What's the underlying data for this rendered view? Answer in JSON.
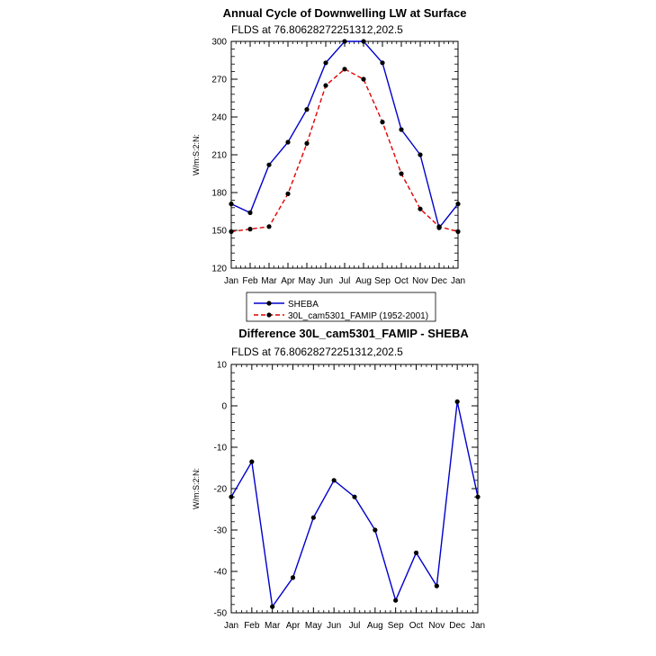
{
  "chart_data": [
    {
      "type": "line",
      "title": "Annual Cycle of Downwelling LW at Surface",
      "subtitle": "FLDS at 76.80628272251312,202.5",
      "ylabel": "W/m:S:2:N:",
      "xlabel": "",
      "categories": [
        "Jan",
        "Feb",
        "Mar",
        "Apr",
        "May",
        "Jun",
        "Jul",
        "Aug",
        "Sep",
        "Oct",
        "Nov",
        "Dec",
        "Jan"
      ],
      "ylim": [
        120,
        300
      ],
      "yticks": [
        120,
        150,
        180,
        210,
        240,
        270,
        300
      ],
      "series": [
        {
          "name": "SHEBA",
          "color": "#0000cc",
          "dash": "solid",
          "values": [
            171,
            164,
            202,
            220,
            246,
            283,
            300,
            300,
            283,
            230,
            210,
            152,
            171
          ]
        },
        {
          "name": "30L_cam5301_FAMIP (1952-2001)",
          "color": "#e00000",
          "dash": "dashed",
          "values": [
            149,
            151,
            153,
            179,
            219,
            265,
            278,
            270,
            236,
            195,
            167,
            153,
            149
          ]
        }
      ],
      "legend_position": "bottom-center"
    },
    {
      "type": "line",
      "title": "Difference 30L_cam5301_FAMIP - SHEBA",
      "subtitle": "FLDS at 76.80628272251312,202.5",
      "ylabel": "W/m:S:2:N:",
      "xlabel": "",
      "categories": [
        "Jan",
        "Feb",
        "Mar",
        "Apr",
        "May",
        "Jun",
        "Jul",
        "Aug",
        "Sep",
        "Oct",
        "Nov",
        "Dec",
        "Jan"
      ],
      "ylim": [
        -50,
        10
      ],
      "yticks": [
        -50,
        -40,
        -30,
        -20,
        -10,
        0,
        10
      ],
      "series": [
        {
          "name": "",
          "color": "#0000cc",
          "dash": "solid",
          "values": [
            -22,
            -13.5,
            -48.5,
            -41.5,
            -27,
            -18,
            -22,
            -30,
            -47,
            -35.5,
            -43.5,
            1,
            -22
          ]
        }
      ]
    }
  ]
}
